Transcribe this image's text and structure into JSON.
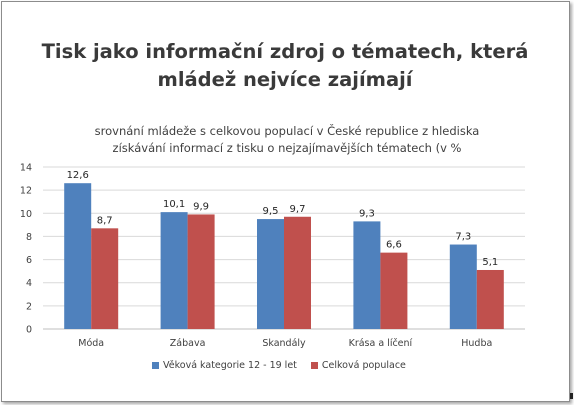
{
  "chart_data": {
    "type": "bar",
    "title": [
      "Tisk jako informační zdroj o tématech, která",
      "mládež nejvíce zajímají"
    ],
    "subtitle": [
      "srovnání mládeže s celkovou populací v České republice z hlediska",
      "získávání informací z tisku o nejzajímavějších tématech (v %"
    ],
    "categories": [
      "Móda",
      "Zábava",
      "Skandály",
      "Krása a líčení",
      "Hudba"
    ],
    "series": [
      {
        "name": "Věková kategorie 12 - 19 let",
        "values": [
          12.6,
          10.1,
          9.5,
          9.3,
          7.3
        ],
        "labels": [
          "12,6",
          "10,1",
          "9,5",
          "9,3",
          "7,3"
        ],
        "color": "#4f81bd"
      },
      {
        "name": "Celková populace",
        "values": [
          8.7,
          9.9,
          9.7,
          6.6,
          5.1
        ],
        "labels": [
          "8,7",
          "9,9",
          "9,7",
          "6,6",
          "5,1"
        ],
        "color": "#c0504d"
      }
    ],
    "yticks": [
      "0",
      "2",
      "4",
      "6",
      "8",
      "10",
      "12",
      "14"
    ],
    "ylim": [
      0,
      14
    ],
    "grid": true,
    "legend": "bottom"
  }
}
